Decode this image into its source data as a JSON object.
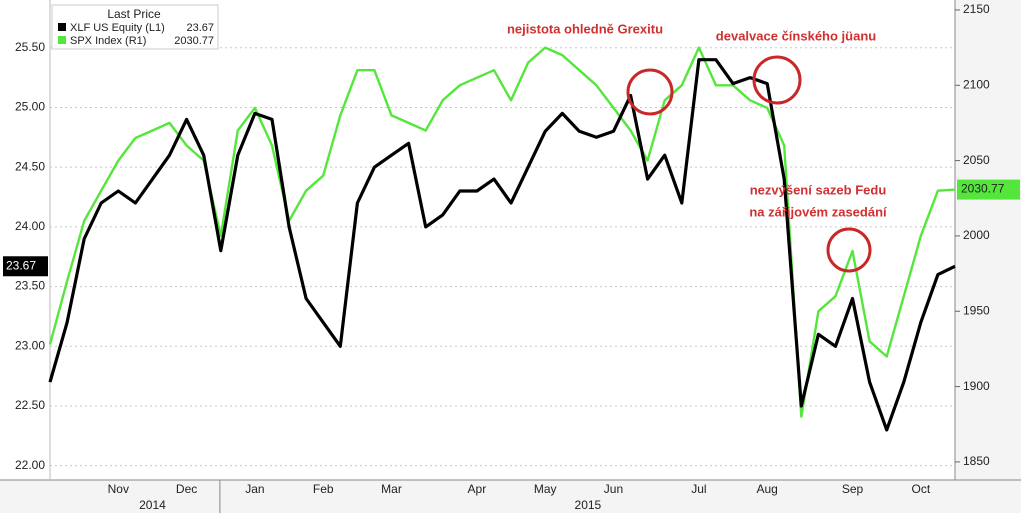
{
  "chart_data": {
    "type": "line",
    "legend_title": "Last Price",
    "categories": [
      null,
      null,
      null,
      null,
      "Nov",
      null,
      null,
      null,
      "Dec",
      null,
      null,
      null,
      "Jan",
      null,
      null,
      null,
      "Feb",
      null,
      null,
      null,
      "Mar",
      null,
      null,
      null,
      null,
      "Apr",
      null,
      null,
      null,
      "May",
      null,
      null,
      null,
      "Jun",
      null,
      null,
      null,
      null,
      "Jul",
      null,
      null,
      null,
      "Aug",
      null,
      null,
      null,
      null,
      "Sep",
      null,
      null,
      null,
      "Oct",
      null,
      null
    ],
    "years": [
      {
        "label": "2014",
        "from": "Nov",
        "to": "Dec"
      },
      {
        "label": "2015",
        "from": "Jan",
        "to": "Oct"
      }
    ],
    "series": [
      {
        "name": "XLF US Equity  (L1)",
        "color": "#000000",
        "axis": "y",
        "values": [
          22.7,
          23.2,
          23.9,
          24.2,
          24.3,
          24.2,
          24.4,
          24.6,
          24.9,
          24.6,
          23.8,
          24.6,
          24.95,
          24.9,
          24.0,
          23.4,
          23.2,
          23.0,
          24.2,
          24.5,
          24.6,
          24.7,
          24.0,
          24.1,
          24.3,
          24.3,
          24.4,
          24.2,
          24.5,
          24.8,
          24.95,
          24.8,
          24.75,
          24.8,
          25.1,
          24.4,
          24.6,
          24.2,
          25.4,
          25.4,
          25.2,
          25.25,
          25.2,
          24.4,
          22.5,
          23.1,
          23.0,
          23.4,
          22.7,
          22.3,
          22.7,
          23.2,
          23.6,
          23.67
        ]
      },
      {
        "name": "SPX Index  (R1)",
        "color": "#55e63c",
        "axis": "y2",
        "values": [
          1928,
          1970,
          2010,
          2030,
          2050,
          2065,
          2070,
          2075,
          2060,
          2050,
          2000,
          2070,
          2085,
          2060,
          2010,
          2030,
          2040,
          2080,
          2110,
          2110,
          2080,
          2075,
          2070,
          2090,
          2100,
          2105,
          2110,
          2090,
          2115,
          2125,
          2120,
          2110,
          2100,
          2085,
          2070,
          2050,
          2090,
          2100,
          2125,
          2100,
          2100,
          2090,
          2085,
          2060,
          1880,
          1950,
          1960,
          1990,
          1930,
          1920,
          1960,
          2000,
          2030,
          2030.77
        ]
      }
    ],
    "ylim": [
      21.88,
      25.9
    ],
    "yticks": [
      {
        "value": 22,
        "label": "22.00"
      },
      {
        "value": 22.5,
        "label": "22.50"
      },
      {
        "value": 23,
        "label": "23.00"
      },
      {
        "value": 23.5,
        "label": "23.50"
      },
      {
        "value": 24,
        "label": "24.00"
      },
      {
        "value": 24.5,
        "label": "24.50"
      },
      {
        "value": 25,
        "label": "25.00"
      },
      {
        "value": 25.5,
        "label": "25.50"
      }
    ],
    "y2lim": [
      1838,
      2156.6
    ],
    "y2ticks": [
      1850,
      1900,
      1950,
      2000,
      2050,
      2100,
      2150
    ],
    "grid": true,
    "annotations": [
      [
        "nejistota ohledně Grexitu"
      ],
      [
        "devalvace čínského jüanu"
      ],
      [
        "nezvýšení sazeb Fedu",
        "na zářijovém zasedání"
      ]
    ]
  }
}
